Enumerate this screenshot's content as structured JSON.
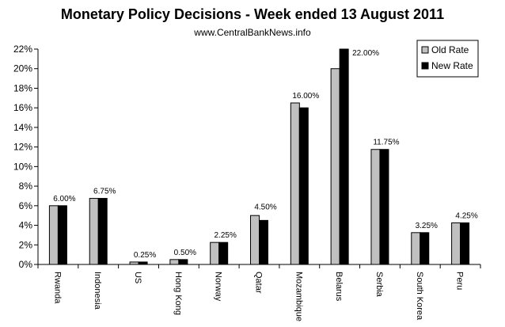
{
  "chart_data": {
    "type": "bar",
    "title": "Monetary Policy Decisions - Week ended 13 August 2011",
    "subtitle": "www.CentralBankNews.info",
    "categories": [
      "Rwanda",
      "Indonesia",
      "US",
      "Hong Kong",
      "Norway",
      "Qatar",
      "Mozambique",
      "Belarus",
      "Serbia",
      "South Korea",
      "Peru"
    ],
    "series": [
      {
        "name": "Old Rate",
        "color": "#c0c0c0",
        "values": [
          6.0,
          6.75,
          0.25,
          0.5,
          2.25,
          5.0,
          16.5,
          20.0,
          11.75,
          3.25,
          4.25
        ]
      },
      {
        "name": "New Rate",
        "color": "#000000",
        "values": [
          6.0,
          6.75,
          0.25,
          0.5,
          2.25,
          4.5,
          16.0,
          22.0,
          11.75,
          3.25,
          4.25
        ]
      }
    ],
    "data_labels": [
      "6.00%",
      "6.75%",
      "0.25%",
      "0.50%",
      "2.25%",
      "4.50%",
      "16.00%",
      "22.00%",
      "11.75%",
      "3.25%",
      "4.25%"
    ],
    "y_ticks": [
      "0%",
      "2%",
      "4%",
      "6%",
      "8%",
      "10%",
      "12%",
      "14%",
      "16%",
      "18%",
      "20%",
      "22%"
    ],
    "ylim": [
      0,
      22
    ],
    "ystep": 2,
    "legend": "top-right",
    "grid": false
  }
}
